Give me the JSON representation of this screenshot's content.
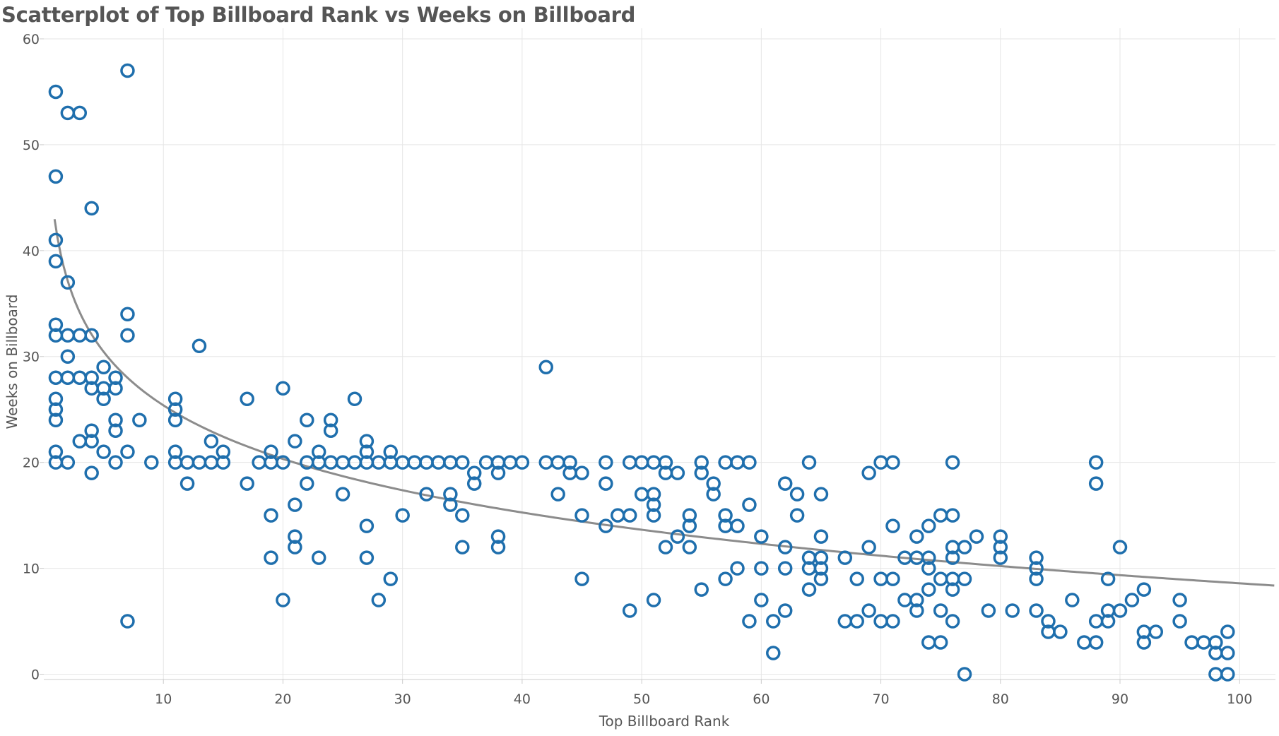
{
  "chart_data": {
    "type": "scatter",
    "title": "Scatterplot of Top Billboard Rank vs Weeks on Billboard",
    "xlabel": "Top Billboard Rank",
    "ylabel": "Weeks on Billboard",
    "xlim": [
      0,
      103
    ],
    "ylim": [
      -0.5,
      61
    ],
    "xticks": [
      10,
      20,
      30,
      40,
      50,
      60,
      70,
      80,
      90,
      100
    ],
    "yticks": [
      0,
      10,
      20,
      30,
      40,
      50,
      60
    ],
    "grid": true,
    "colors": {
      "points": "#1f6fad",
      "trend": "#8c8c8c",
      "grid": "#e6e6e6",
      "text": "#555555"
    },
    "trend_line": {
      "type": "logarithmic",
      "equation": "y = 42.2 - 7.3 * ln(x)"
    },
    "points": [
      [
        1,
        55
      ],
      [
        1,
        47
      ],
      [
        1,
        41
      ],
      [
        1,
        39
      ],
      [
        1,
        33
      ],
      [
        1,
        32
      ],
      [
        1,
        28
      ],
      [
        1,
        26
      ],
      [
        1,
        25
      ],
      [
        1,
        24
      ],
      [
        1,
        21
      ],
      [
        1,
        20
      ],
      [
        2,
        53
      ],
      [
        2,
        37
      ],
      [
        2,
        32
      ],
      [
        2,
        30
      ],
      [
        2,
        28
      ],
      [
        2,
        20
      ],
      [
        3,
        53
      ],
      [
        3,
        32
      ],
      [
        3,
        28
      ],
      [
        3,
        22
      ],
      [
        4,
        44
      ],
      [
        4,
        32
      ],
      [
        4,
        28
      ],
      [
        4,
        27
      ],
      [
        4,
        23
      ],
      [
        4,
        22
      ],
      [
        4,
        19
      ],
      [
        5,
        29
      ],
      [
        5,
        27
      ],
      [
        5,
        26
      ],
      [
        5,
        21
      ],
      [
        6,
        28
      ],
      [
        6,
        27
      ],
      [
        6,
        24
      ],
      [
        6,
        23
      ],
      [
        6,
        20
      ],
      [
        7,
        57
      ],
      [
        7,
        34
      ],
      [
        7,
        32
      ],
      [
        7,
        21
      ],
      [
        7,
        5
      ],
      [
        8,
        24
      ],
      [
        9,
        20
      ],
      [
        11,
        26
      ],
      [
        11,
        25
      ],
      [
        11,
        24
      ],
      [
        11,
        21
      ],
      [
        11,
        20
      ],
      [
        12,
        20
      ],
      [
        12,
        18
      ],
      [
        13,
        31
      ],
      [
        13,
        20
      ],
      [
        14,
        22
      ],
      [
        14,
        20
      ],
      [
        15,
        21
      ],
      [
        15,
        20
      ],
      [
        17,
        26
      ],
      [
        17,
        18
      ],
      [
        18,
        20
      ],
      [
        19,
        21
      ],
      [
        19,
        20
      ],
      [
        19,
        15
      ],
      [
        19,
        11
      ],
      [
        20,
        27
      ],
      [
        20,
        20
      ],
      [
        20,
        7
      ],
      [
        21,
        22
      ],
      [
        21,
        16
      ],
      [
        21,
        13
      ],
      [
        21,
        12
      ],
      [
        22,
        24
      ],
      [
        22,
        20
      ],
      [
        22,
        18
      ],
      [
        23,
        21
      ],
      [
        23,
        20
      ],
      [
        23,
        11
      ],
      [
        24,
        24
      ],
      [
        24,
        23
      ],
      [
        24,
        20
      ],
      [
        25,
        20
      ],
      [
        25,
        17
      ],
      [
        26,
        26
      ],
      [
        26,
        20
      ],
      [
        27,
        22
      ],
      [
        27,
        21
      ],
      [
        27,
        20
      ],
      [
        27,
        14
      ],
      [
        27,
        11
      ],
      [
        28,
        20
      ],
      [
        28,
        7
      ],
      [
        29,
        21
      ],
      [
        29,
        20
      ],
      [
        29,
        9
      ],
      [
        30,
        20
      ],
      [
        30,
        15
      ],
      [
        31,
        20
      ],
      [
        32,
        20
      ],
      [
        32,
        17
      ],
      [
        33,
        20
      ],
      [
        34,
        20
      ],
      [
        34,
        17
      ],
      [
        34,
        16
      ],
      [
        35,
        20
      ],
      [
        35,
        15
      ],
      [
        35,
        12
      ],
      [
        36,
        19
      ],
      [
        36,
        18
      ],
      [
        37,
        20
      ],
      [
        38,
        20
      ],
      [
        38,
        19
      ],
      [
        38,
        13
      ],
      [
        38,
        12
      ],
      [
        39,
        20
      ],
      [
        40,
        20
      ],
      [
        42,
        29
      ],
      [
        42,
        20
      ],
      [
        43,
        20
      ],
      [
        43,
        17
      ],
      [
        44,
        20
      ],
      [
        44,
        19
      ],
      [
        45,
        19
      ],
      [
        45,
        15
      ],
      [
        45,
        9
      ],
      [
        47,
        20
      ],
      [
        47,
        18
      ],
      [
        47,
        14
      ],
      [
        48,
        15
      ],
      [
        49,
        20
      ],
      [
        49,
        15
      ],
      [
        49,
        6
      ],
      [
        50,
        20
      ],
      [
        50,
        17
      ],
      [
        51,
        20
      ],
      [
        51,
        17
      ],
      [
        51,
        16
      ],
      [
        51,
        15
      ],
      [
        51,
        7
      ],
      [
        52,
        20
      ],
      [
        52,
        19
      ],
      [
        52,
        12
      ],
      [
        53,
        19
      ],
      [
        53,
        13
      ],
      [
        54,
        15
      ],
      [
        54,
        14
      ],
      [
        54,
        12
      ],
      [
        55,
        20
      ],
      [
        55,
        19
      ],
      [
        55,
        8
      ],
      [
        56,
        18
      ],
      [
        56,
        17
      ],
      [
        57,
        20
      ],
      [
        57,
        15
      ],
      [
        57,
        14
      ],
      [
        57,
        9
      ],
      [
        58,
        20
      ],
      [
        58,
        14
      ],
      [
        58,
        10
      ],
      [
        59,
        20
      ],
      [
        59,
        16
      ],
      [
        59,
        5
      ],
      [
        60,
        13
      ],
      [
        60,
        10
      ],
      [
        60,
        7
      ],
      [
        61,
        5
      ],
      [
        61,
        2
      ],
      [
        62,
        18
      ],
      [
        62,
        12
      ],
      [
        62,
        10
      ],
      [
        62,
        6
      ],
      [
        63,
        17
      ],
      [
        63,
        15
      ],
      [
        64,
        20
      ],
      [
        64,
        11
      ],
      [
        64,
        10
      ],
      [
        64,
        8
      ],
      [
        65,
        17
      ],
      [
        65,
        13
      ],
      [
        65,
        11
      ],
      [
        65,
        10
      ],
      [
        65,
        9
      ],
      [
        67,
        11
      ],
      [
        67,
        5
      ],
      [
        68,
        9
      ],
      [
        68,
        5
      ],
      [
        69,
        19
      ],
      [
        69,
        12
      ],
      [
        69,
        6
      ],
      [
        70,
        20
      ],
      [
        70,
        9
      ],
      [
        70,
        5
      ],
      [
        71,
        20
      ],
      [
        71,
        14
      ],
      [
        71,
        9
      ],
      [
        71,
        5
      ],
      [
        72,
        11
      ],
      [
        72,
        7
      ],
      [
        73,
        13
      ],
      [
        73,
        11
      ],
      [
        73,
        7
      ],
      [
        73,
        6
      ],
      [
        74,
        14
      ],
      [
        74,
        11
      ],
      [
        74,
        10
      ],
      [
        74,
        8
      ],
      [
        74,
        3
      ],
      [
        75,
        15
      ],
      [
        75,
        9
      ],
      [
        75,
        6
      ],
      [
        75,
        3
      ],
      [
        76,
        20
      ],
      [
        76,
        15
      ],
      [
        76,
        12
      ],
      [
        76,
        11
      ],
      [
        76,
        9
      ],
      [
        76,
        8
      ],
      [
        76,
        5
      ],
      [
        77,
        12
      ],
      [
        77,
        9
      ],
      [
        77,
        0
      ],
      [
        78,
        13
      ],
      [
        79,
        6
      ],
      [
        80,
        13
      ],
      [
        80,
        12
      ],
      [
        80,
        11
      ],
      [
        81,
        6
      ],
      [
        83,
        11
      ],
      [
        83,
        10
      ],
      [
        83,
        9
      ],
      [
        83,
        6
      ],
      [
        84,
        5
      ],
      [
        84,
        4
      ],
      [
        85,
        4
      ],
      [
        86,
        7
      ],
      [
        87,
        3
      ],
      [
        88,
        20
      ],
      [
        88,
        18
      ],
      [
        88,
        5
      ],
      [
        88,
        3
      ],
      [
        89,
        9
      ],
      [
        89,
        6
      ],
      [
        89,
        5
      ],
      [
        90,
        12
      ],
      [
        90,
        6
      ],
      [
        91,
        7
      ],
      [
        92,
        8
      ],
      [
        92,
        4
      ],
      [
        92,
        3
      ],
      [
        93,
        4
      ],
      [
        95,
        7
      ],
      [
        95,
        5
      ],
      [
        96,
        3
      ],
      [
        97,
        3
      ],
      [
        98,
        3
      ],
      [
        98,
        2
      ],
      [
        98,
        0
      ],
      [
        99,
        4
      ],
      [
        99,
        2
      ],
      [
        99,
        0
      ]
    ]
  }
}
